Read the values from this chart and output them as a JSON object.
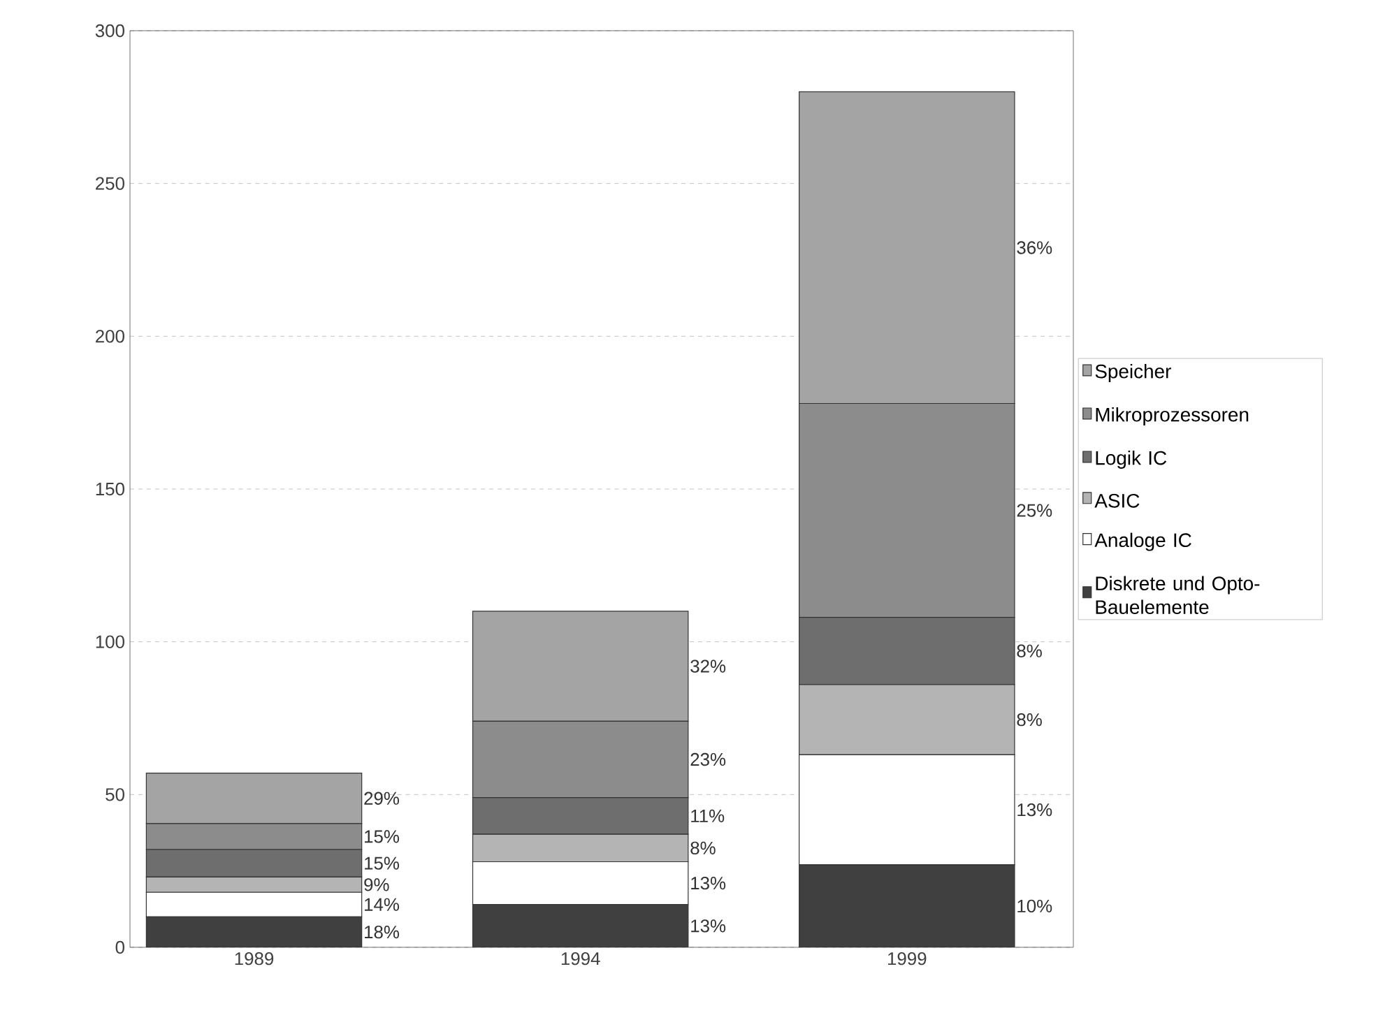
{
  "chart_data": {
    "type": "bar",
    "stacked": true,
    "categories": [
      "1989",
      "1994",
      "1999"
    ],
    "series": [
      {
        "name": "Diskrete und Opto-Bauelemente",
        "color": "#404040",
        "values": [
          10,
          14,
          27
        ]
      },
      {
        "name": "Analoge IC",
        "color": "#ffffff",
        "values": [
          8,
          14,
          36
        ]
      },
      {
        "name": "ASIC",
        "color": "#b4b4b4",
        "values": [
          5,
          9,
          23
        ]
      },
      {
        "name": "Logik IC",
        "color": "#6e6e6e",
        "values": [
          9,
          12,
          22
        ]
      },
      {
        "name": "Mikroprozessoren",
        "color": "#8c8c8c",
        "values": [
          8.5,
          25,
          70
        ]
      },
      {
        "name": "Speicher",
        "color": "#a4a4a4",
        "values": [
          16.5,
          36,
          102
        ]
      }
    ],
    "annotations": [
      "18%",
      "14%",
      "9%",
      "15%",
      "15%",
      "29%",
      "13%",
      "13%",
      "8%",
      "11%",
      "23%",
      "32%",
      "10%",
      "13%",
      "8%",
      "8%",
      "25%",
      "36%"
    ],
    "ylim": [
      0,
      300
    ],
    "yticks": [
      0,
      50,
      100,
      150,
      200,
      250,
      300
    ],
    "grid": "y",
    "legend": "right"
  }
}
